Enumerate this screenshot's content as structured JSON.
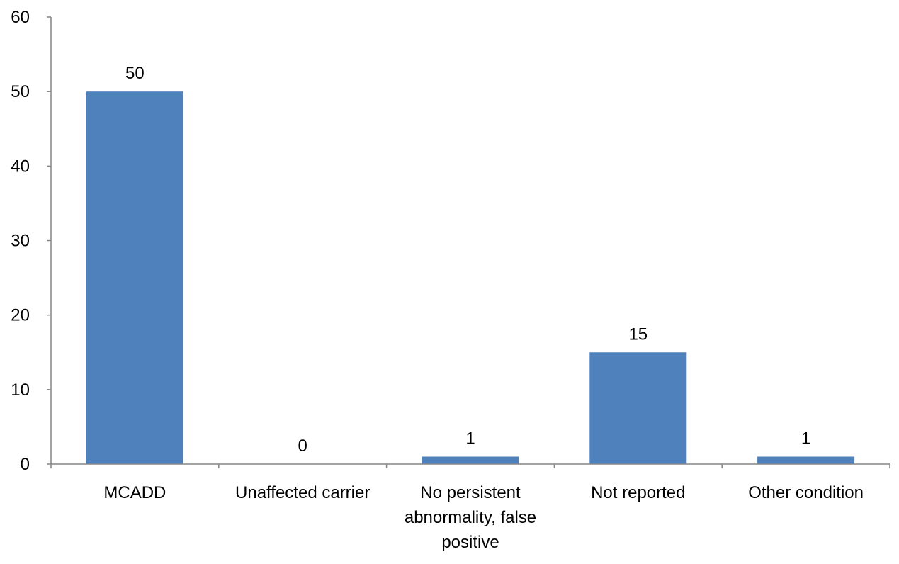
{
  "chart_data": {
    "type": "bar",
    "categories": [
      "MCADD",
      "Unaffected carrier",
      "No persistent abnormality, false positive",
      "Not reported",
      "Other condition"
    ],
    "category_label_lines": [
      [
        "MCADD"
      ],
      [
        "Unaffected carrier"
      ],
      [
        "No persistent",
        "abnormality, false",
        "positive"
      ],
      [
        "Not reported"
      ],
      [
        "Other condition"
      ]
    ],
    "values": [
      50,
      0,
      1,
      15,
      1
    ],
    "data_labels": [
      "50",
      "0",
      "1",
      "15",
      "1"
    ],
    "ylim": [
      0,
      60
    ],
    "yticks": [
      0,
      10,
      20,
      30,
      40,
      50,
      60
    ],
    "title": "",
    "xlabel": "",
    "ylabel": "",
    "grid": false,
    "colors": {
      "bar": "#4F81BD",
      "axis": "#868686"
    }
  }
}
